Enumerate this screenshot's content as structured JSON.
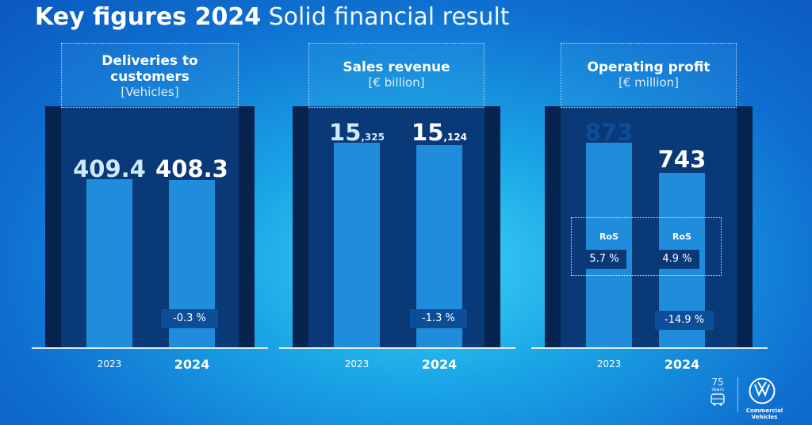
{
  "header": {
    "title_bold": "Key figures 2024",
    "title_light": "Solid financial result"
  },
  "chart_data": [
    {
      "type": "bar",
      "title": "Deliveries to customers",
      "unit": "[Vehicles]",
      "categories": [
        "2023",
        "2024"
      ],
      "values": [
        409.4,
        408.3
      ],
      "value_labels": {
        "main": [
          "409.4",
          "408.3"
        ],
        "fraction": [
          "",
          ""
        ]
      },
      "change": "-0.3 %"
    },
    {
      "type": "bar",
      "title": "Sales revenue",
      "unit": "[€ billion]",
      "categories": [
        "2023",
        "2024"
      ],
      "values": [
        15.325,
        15.124
      ],
      "value_labels": {
        "main": [
          "15",
          "15"
        ],
        "fraction": [
          ",325",
          ",124"
        ]
      },
      "change": "-1.3 %"
    },
    {
      "type": "bar",
      "title": "Operating profit",
      "unit": "[€ million]",
      "categories": [
        "2023",
        "2024"
      ],
      "values": [
        873,
        743
      ],
      "value_labels": {
        "main": [
          "873",
          "743"
        ],
        "fraction": [
          "",
          ""
        ]
      },
      "change": "-14.9 %",
      "ros": {
        "label": "RoS",
        "values": [
          "5.7 %",
          "4.9 %"
        ]
      }
    }
  ],
  "branding": {
    "anniversary_number": "75",
    "anniversary_label": "Years",
    "brand_line1": "Commercial",
    "brand_line2": "Vehicles"
  },
  "colors": {
    "bar": "#1f8ddb",
    "panel": "#0a3978",
    "panel_edge": "#06234f",
    "change_badge": "#0c4e97"
  }
}
